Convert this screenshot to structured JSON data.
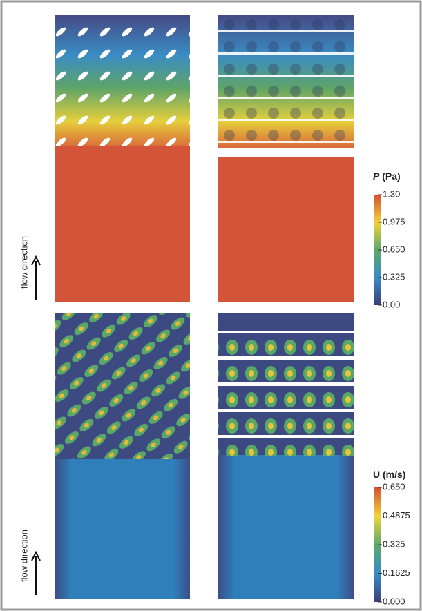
{
  "pressure_panel": {
    "flow_label": "flow direction",
    "colorbar": {
      "symbol": "P",
      "unit": "(Pa)",
      "ticks": [
        "1.30",
        "0.975",
        "0.650",
        "0.325",
        "0.00"
      ]
    }
  },
  "velocity_panel": {
    "flow_label": "flow direction",
    "colorbar": {
      "symbol": "U",
      "unit": "(m/s)",
      "ticks": [
        "0.650",
        "0.4875",
        "0.325",
        "0.1625",
        "0.000"
      ]
    }
  }
}
